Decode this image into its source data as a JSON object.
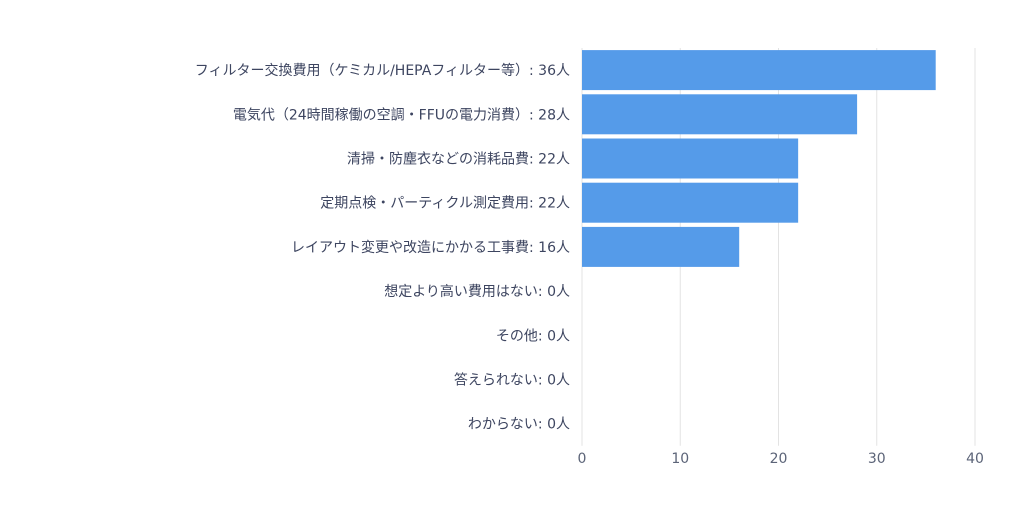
{
  "chart_data": {
    "type": "bar",
    "orientation": "horizontal",
    "categories": [
      "フィルター交換費用（ケミカル/HEPAフィルター等）",
      "電気代（24時間稼働の空調・FFUの電力消費）",
      "清掃・防塵衣などの消耗品費",
      "定期点検・パーティクル測定費用",
      "レイアウト変更や改造にかかる工事費",
      "想定より高い費用はない",
      "その他",
      "答えられない",
      "わからない"
    ],
    "labels": [
      "フィルター交換費用（ケミカル/HEPAフィルター等）: 36人",
      "電気代（24時間稼働の空調・FFUの電力消費）: 28人",
      "清掃・防塵衣などの消耗品費: 22人",
      "定期点検・パーティクル測定費用: 22人",
      "レイアウト変更や改造にかかる工事費: 16人",
      "想定より高い費用はない: 0人",
      "その他: 0人",
      "答えられない: 0人",
      "わからない: 0人"
    ],
    "values": [
      36,
      28,
      22,
      22,
      16,
      0,
      0,
      0,
      0
    ],
    "unit": "人",
    "xlim": [
      0,
      40
    ],
    "xticks": [
      0,
      10,
      20,
      30,
      40
    ],
    "title": "",
    "xlabel": "",
    "ylabel": "",
    "grid": true,
    "bar_color": "#559be9"
  }
}
